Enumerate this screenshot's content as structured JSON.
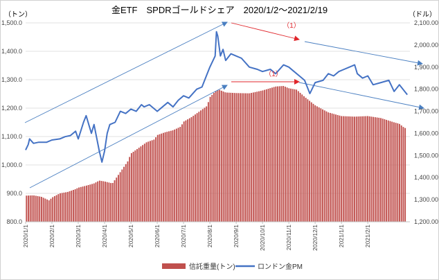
{
  "chart_data": {
    "type": "bar+line",
    "title": "金ETF　SPDRゴールドシェア　2020/1/2～2021/2/19",
    "left_unit": "（トン）",
    "right_unit": "（ドル）",
    "y_left": {
      "min": 800,
      "max": 1500,
      "ticks": [
        "800.0",
        "900.0",
        "1,000.0",
        "1,100.0",
        "1,200.0",
        "1,300.0",
        "1,400.0",
        "1,500.0"
      ]
    },
    "y_right": {
      "min": 1200,
      "max": 2100,
      "ticks": [
        "1,200.00",
        "1,300.00",
        "1,400.00",
        "1,500.00",
        "1,600.00",
        "1,700.00",
        "1,800.00",
        "1,900.00",
        "2,000.00",
        "2,100.00"
      ]
    },
    "x_labels": [
      "2020/1/1",
      "2020/2/1",
      "2020/3/1",
      "2020/4/1",
      "2020/5/1",
      "2020/6/1",
      "2020/7/1",
      "2020/8/1",
      "2020/9/1",
      "2020/10/1",
      "2020/11/1",
      "2020/12/1",
      "2021/1/1",
      "2021/2/1"
    ],
    "series": [
      {
        "name": "信託重量(トン)",
        "type": "bar",
        "axis": "left",
        "color": "#c0504d",
        "points": [
          [
            0,
            892
          ],
          [
            0.3,
            893
          ],
          [
            0.6,
            888
          ],
          [
            0.9,
            875
          ],
          [
            1.0,
            885
          ],
          [
            1.3,
            900
          ],
          [
            1.6,
            905
          ],
          [
            1.9,
            915
          ],
          [
            2.0,
            920
          ],
          [
            2.3,
            927
          ],
          [
            2.6,
            935
          ],
          [
            2.8,
            945
          ],
          [
            3.0,
            942
          ],
          [
            3.3,
            935
          ],
          [
            3.6,
            975
          ],
          [
            3.9,
            1015
          ],
          [
            4.0,
            1040
          ],
          [
            4.3,
            1060
          ],
          [
            4.6,
            1080
          ],
          [
            4.9,
            1090
          ],
          [
            5.0,
            1105
          ],
          [
            5.3,
            1115
          ],
          [
            5.6,
            1122
          ],
          [
            5.9,
            1135
          ],
          [
            6.0,
            1152
          ],
          [
            6.3,
            1168
          ],
          [
            6.6,
            1188
          ],
          [
            6.9,
            1208
          ],
          [
            7.0,
            1238
          ],
          [
            7.2,
            1258
          ],
          [
            7.35,
            1265
          ],
          [
            7.6,
            1255
          ],
          [
            8.0,
            1253
          ],
          [
            8.5,
            1252
          ],
          [
            9.0,
            1262
          ],
          [
            9.5,
            1276
          ],
          [
            9.8,
            1278
          ],
          [
            10.0,
            1270
          ],
          [
            10.3,
            1265
          ],
          [
            10.6,
            1240
          ],
          [
            11.0,
            1210
          ],
          [
            11.5,
            1185
          ],
          [
            12.0,
            1172
          ],
          [
            12.5,
            1170
          ],
          [
            13.0,
            1172
          ],
          [
            13.5,
            1165
          ],
          [
            14.0,
            1150
          ],
          [
            14.2,
            1145
          ],
          [
            14.4,
            1130
          ]
        ]
      },
      {
        "name": "ロンドン金PM",
        "type": "line",
        "axis": "right",
        "color": "#4472c4",
        "points": [
          [
            0,
            1525
          ],
          [
            0.1,
            1550
          ],
          [
            0.15,
            1575
          ],
          [
            0.3,
            1555
          ],
          [
            0.5,
            1560
          ],
          [
            0.8,
            1560
          ],
          [
            1.0,
            1570
          ],
          [
            1.3,
            1575
          ],
          [
            1.5,
            1585
          ],
          [
            1.7,
            1590
          ],
          [
            1.9,
            1610
          ],
          [
            2.0,
            1575
          ],
          [
            2.2,
            1650
          ],
          [
            2.3,
            1680
          ],
          [
            2.5,
            1600
          ],
          [
            2.6,
            1640
          ],
          [
            2.7,
            1580
          ],
          [
            2.8,
            1520
          ],
          [
            2.9,
            1470
          ],
          [
            3.0,
            1520
          ],
          [
            3.1,
            1600
          ],
          [
            3.2,
            1640
          ],
          [
            3.4,
            1650
          ],
          [
            3.6,
            1700
          ],
          [
            3.8,
            1690
          ],
          [
            4.0,
            1710
          ],
          [
            4.2,
            1700
          ],
          [
            4.4,
            1730
          ],
          [
            4.5,
            1720
          ],
          [
            4.7,
            1730
          ],
          [
            5.0,
            1700
          ],
          [
            5.2,
            1720
          ],
          [
            5.4,
            1740
          ],
          [
            5.6,
            1720
          ],
          [
            5.8,
            1750
          ],
          [
            6.0,
            1770
          ],
          [
            6.2,
            1760
          ],
          [
            6.5,
            1800
          ],
          [
            6.7,
            1810
          ],
          [
            6.9,
            1870
          ],
          [
            7.0,
            1900
          ],
          [
            7.2,
            1950
          ],
          [
            7.25,
            2060
          ],
          [
            7.3,
            2040
          ],
          [
            7.4,
            1950
          ],
          [
            7.5,
            1980
          ],
          [
            7.6,
            1930
          ],
          [
            7.8,
            1960
          ],
          [
            8.0,
            1950
          ],
          [
            8.2,
            1940
          ],
          [
            8.5,
            1900
          ],
          [
            8.8,
            1890
          ],
          [
            9.0,
            1880
          ],
          [
            9.3,
            1890
          ],
          [
            9.5,
            1870
          ],
          [
            9.8,
            1910
          ],
          [
            10.0,
            1900
          ],
          [
            10.2,
            1880
          ],
          [
            10.4,
            1860
          ],
          [
            10.6,
            1840
          ],
          [
            10.8,
            1780
          ],
          [
            11.0,
            1830
          ],
          [
            11.3,
            1840
          ],
          [
            11.5,
            1870
          ],
          [
            11.7,
            1860
          ],
          [
            11.9,
            1880
          ],
          [
            12.1,
            1890
          ],
          [
            12.3,
            1900
          ],
          [
            12.5,
            1910
          ],
          [
            12.6,
            1870
          ],
          [
            12.8,
            1850
          ],
          [
            13.0,
            1860
          ],
          [
            13.2,
            1820
          ],
          [
            13.5,
            1830
          ],
          [
            13.8,
            1840
          ],
          [
            14.0,
            1790
          ],
          [
            14.2,
            1820
          ],
          [
            14.5,
            1775
          ]
        ]
      }
    ],
    "annotations": [
      {
        "text": "（1）",
        "color": "#e0262b"
      },
      {
        "text": "（1）",
        "color": "#e0262b"
      }
    ],
    "legend": [
      "信託重量(トン)",
      "ロンドン金PM"
    ],
    "legend_position": "bottom"
  }
}
